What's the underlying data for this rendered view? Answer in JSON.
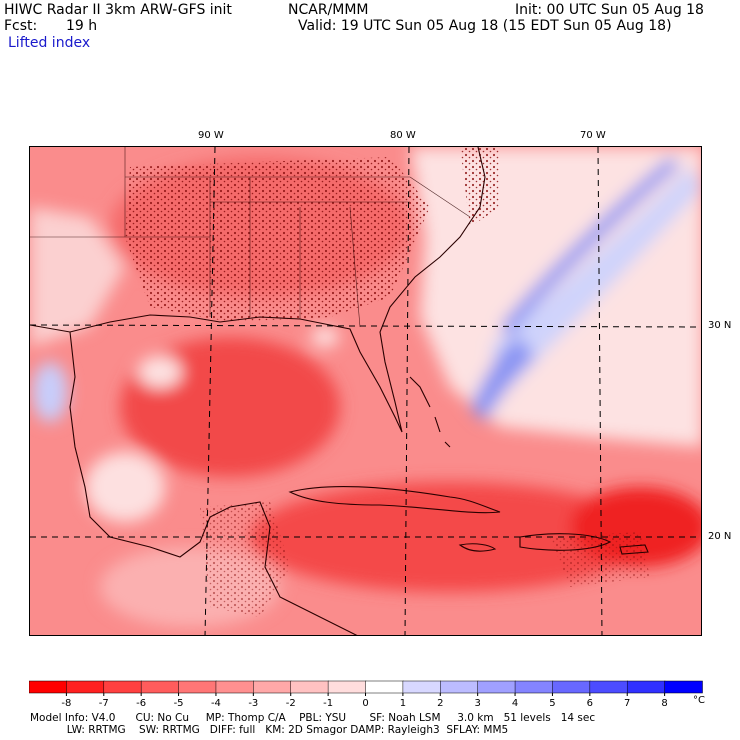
{
  "header": {
    "title_left": "HIWC Radar II 3km ARW-GFS init",
    "org": "NCAR/MMM",
    "init": "Init: 00 UTC Sun 05 Aug 18",
    "fcst_label": "Fcst:",
    "fcst_value": "19 h",
    "valid": "Valid: 19 UTC Sun 05 Aug 18 (15 EDT Sun 05 Aug 18)",
    "field": "Lifted index"
  },
  "map": {
    "lon_labels": [
      "90 W",
      "80 W",
      "70 W"
    ],
    "lat_labels": [
      "30 N",
      "20 N"
    ],
    "palette": {
      "strong_warm": "#f01010",
      "warm": "#f86060",
      "mid": "#fb9898",
      "light": "#fdd0d0",
      "neutral": "#ffffff",
      "cool": "#c8cdfb",
      "cold": "#7a86f5"
    }
  },
  "legend": {
    "ticks": [
      "-8",
      "-7",
      "-6",
      "-5",
      "-4",
      "-3",
      "-2",
      "-1",
      "0",
      "1",
      "2",
      "3",
      "4",
      "5",
      "6",
      "7",
      "8"
    ],
    "unit": "°C",
    "colors": [
      "#ff0000",
      "#ff2020",
      "#ff4040",
      "#ff5c5c",
      "#ff7676",
      "#ff9090",
      "#ffa8a8",
      "#ffc2c2",
      "#ffdddd",
      "#ffffff",
      "#d8d8ff",
      "#bcbcff",
      "#a0a0ff",
      "#8484ff",
      "#6868ff",
      "#4c4cff",
      "#3030ff",
      "#0000ff"
    ]
  },
  "footer": {
    "line1": "Model Info: V4.0      CU: No Cu     MP: Thomp C/A    PBL: YSU       SF: Noah LSM     3.0 km   51 levels   14 sec",
    "line2": "           LW: RRTMG    SW: RRTMG   DIFF: full   KM: 2D Smagor DAMP: Rayleigh3  SFLAY: MM5"
  }
}
